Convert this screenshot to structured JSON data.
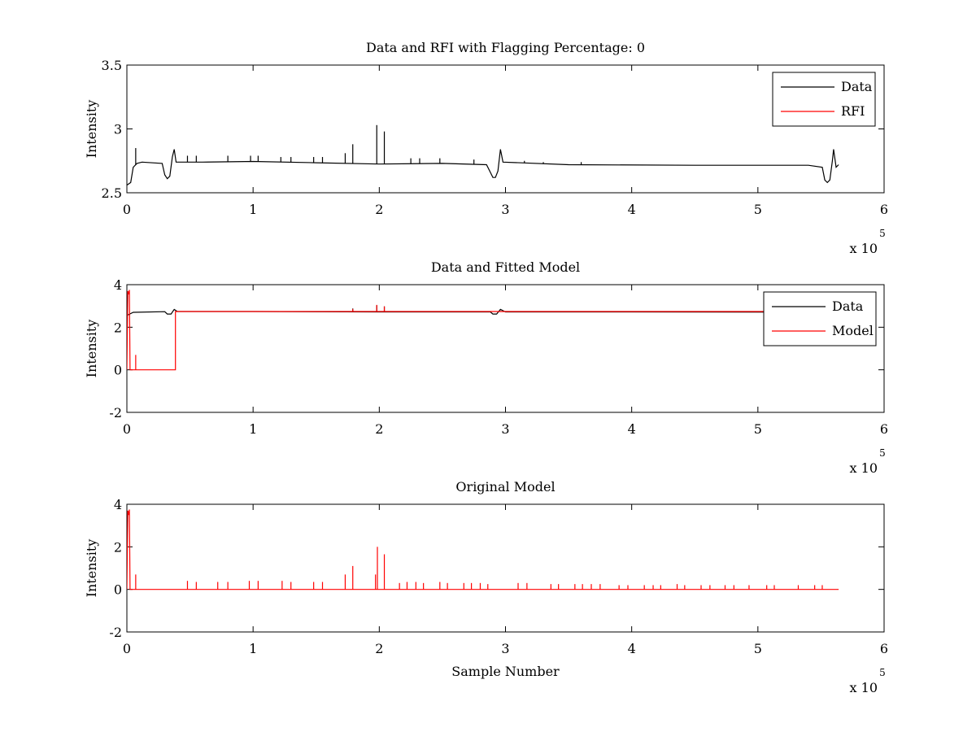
{
  "chart_data": [
    {
      "type": "line",
      "title": "Data and RFI with Flagging Percentage: 0",
      "xlabel": "",
      "ylabel": "Intensity",
      "xlim": [
        0,
        600000
      ],
      "ylim": [
        2.5,
        3.5
      ],
      "xticks": [
        0,
        1,
        2,
        3,
        4,
        5,
        6
      ],
      "yticks": [
        "2.5",
        "3",
        "3.5"
      ],
      "x_multiplier": {
        "base": "x 10",
        "exponent": "5"
      },
      "legend": {
        "position": "top-right",
        "entries": [
          {
            "label": "Data",
            "color": "#000000"
          },
          {
            "label": "RFI",
            "color": "#ff0000"
          }
        ]
      },
      "series": [
        {
          "name": "Data",
          "color": "#000000",
          "kind": "baseline",
          "points": [
            [
              0,
              2.56
            ],
            [
              3000,
              2.58
            ],
            [
              5000,
              2.7
            ],
            [
              8000,
              2.73
            ],
            [
              12000,
              2.74
            ],
            [
              28000,
              2.73
            ],
            [
              30000,
              2.64
            ],
            [
              32000,
              2.61
            ],
            [
              34000,
              2.63
            ],
            [
              36000,
              2.78
            ],
            [
              37500,
              2.84
            ],
            [
              39000,
              2.74
            ],
            [
              60000,
              2.74
            ],
            [
              100000,
              2.745
            ],
            [
              150000,
              2.735
            ],
            [
              200000,
              2.725
            ],
            [
              250000,
              2.73
            ],
            [
              285000,
              2.72
            ],
            [
              288000,
              2.66
            ],
            [
              290000,
              2.62
            ],
            [
              292000,
              2.62
            ],
            [
              294000,
              2.67
            ],
            [
              296000,
              2.84
            ],
            [
              298000,
              2.74
            ],
            [
              350000,
              2.72
            ],
            [
              450000,
              2.715
            ],
            [
              540000,
              2.715
            ],
            [
              551000,
              2.7
            ],
            [
              553000,
              2.6
            ],
            [
              555000,
              2.58
            ],
            [
              557000,
              2.6
            ],
            [
              559000,
              2.75
            ],
            [
              560000,
              2.84
            ],
            [
              562000,
              2.7
            ],
            [
              564000,
              2.72
            ]
          ],
          "spikes": [
            [
              7000,
              2.85
            ],
            [
              48000,
              2.79
            ],
            [
              55000,
              2.79
            ],
            [
              80000,
              2.79
            ],
            [
              98000,
              2.79
            ],
            [
              104000,
              2.79
            ],
            [
              122000,
              2.78
            ],
            [
              130000,
              2.78
            ],
            [
              148000,
              2.78
            ],
            [
              155000,
              2.78
            ],
            [
              173000,
              2.81
            ],
            [
              179000,
              2.88
            ],
            [
              198000,
              3.03
            ],
            [
              204000,
              2.98
            ],
            [
              225000,
              2.77
            ],
            [
              232000,
              2.77
            ],
            [
              248000,
              2.77
            ],
            [
              275000,
              2.76
            ],
            [
              315000,
              2.75
            ],
            [
              330000,
              2.74
            ],
            [
              360000,
              2.74
            ]
          ]
        },
        {
          "name": "RFI",
          "color": "#ff0000",
          "points": []
        }
      ]
    },
    {
      "type": "line",
      "title": "Data and Fitted Model",
      "xlabel": "",
      "ylabel": "Intensity",
      "xlim": [
        0,
        600000
      ],
      "ylim": [
        -2,
        4
      ],
      "xticks": [
        0,
        1,
        2,
        3,
        4,
        5,
        6
      ],
      "yticks": [
        "-2",
        "0",
        "2",
        "4"
      ],
      "x_multiplier": {
        "base": "x 10",
        "exponent": "5"
      },
      "legend": {
        "position": "top-right",
        "entries": [
          {
            "label": "Data",
            "color": "#000000"
          },
          {
            "label": "Model",
            "color": "#ff0000"
          }
        ]
      },
      "series": [
        {
          "name": "Data",
          "color": "#000000",
          "kind": "baseline",
          "points": [
            [
              0,
              2.55
            ],
            [
              5000,
              2.7
            ],
            [
              30000,
              2.73
            ],
            [
              32000,
              2.62
            ],
            [
              35000,
              2.62
            ],
            [
              37500,
              2.84
            ],
            [
              40000,
              2.74
            ],
            [
              100000,
              2.74
            ],
            [
              200000,
              2.72
            ],
            [
              288000,
              2.72
            ],
            [
              290000,
              2.62
            ],
            [
              293000,
              2.62
            ],
            [
              296000,
              2.84
            ],
            [
              300000,
              2.72
            ],
            [
              400000,
              2.72
            ],
            [
              545000,
              2.71
            ],
            [
              553000,
              2.58
            ],
            [
              558000,
              2.62
            ],
            [
              562000,
              2.7
            ]
          ],
          "spikes": [
            [
              198000,
              3.03
            ],
            [
              204000,
              2.98
            ],
            [
              179000,
              2.88
            ]
          ]
        },
        {
          "name": "Model",
          "color": "#ff0000",
          "kind": "baseline",
          "points": [
            [
              0,
              0
            ],
            [
              800,
              3.7
            ],
            [
              1500,
              3.55
            ],
            [
              2000,
              3.75
            ],
            [
              2500,
              0
            ],
            [
              38500,
              0
            ],
            [
              38500,
              2.74
            ],
            [
              560000,
              2.74
            ]
          ],
          "spikes": [
            [
              7000,
              0.7
            ],
            [
              198000,
              3.05
            ],
            [
              204000,
              2.98
            ],
            [
              179000,
              2.86
            ]
          ]
        }
      ]
    },
    {
      "type": "line",
      "title": "Original Model",
      "xlabel": "Sample Number",
      "ylabel": "Intensity",
      "xlim": [
        0,
        600000
      ],
      "ylim": [
        -2,
        4
      ],
      "xticks": [
        0,
        1,
        2,
        3,
        4,
        5,
        6
      ],
      "yticks": [
        "-2",
        "0",
        "2",
        "4"
      ],
      "x_multiplier": {
        "base": "x 10",
        "exponent": "5"
      },
      "series": [
        {
          "name": "",
          "color": "#ff0000",
          "kind": "baseline",
          "points": [
            [
              0,
              0
            ],
            [
              800,
              3.7
            ],
            [
              1500,
              3.5
            ],
            [
              2000,
              3.75
            ],
            [
              2500,
              0
            ],
            [
              564000,
              0
            ]
          ],
          "spikes": [
            [
              7000,
              0.7
            ],
            [
              48000,
              0.4
            ],
            [
              55000,
              0.35
            ],
            [
              72000,
              0.35
            ],
            [
              80000,
              0.35
            ],
            [
              97000,
              0.4
            ],
            [
              104000,
              0.4
            ],
            [
              123000,
              0.4
            ],
            [
              130000,
              0.35
            ],
            [
              148000,
              0.35
            ],
            [
              155000,
              0.35
            ],
            [
              173000,
              0.7
            ],
            [
              179000,
              1.1
            ],
            [
              197000,
              0.7
            ],
            [
              198500,
              2.0
            ],
            [
              204000,
              1.65
            ],
            [
              216000,
              0.3
            ],
            [
              222000,
              0.35
            ],
            [
              229000,
              0.35
            ],
            [
              235000,
              0.3
            ],
            [
              248000,
              0.35
            ],
            [
              254000,
              0.3
            ],
            [
              267000,
              0.3
            ],
            [
              273000,
              0.3
            ],
            [
              280000,
              0.3
            ],
            [
              286000,
              0.25
            ],
            [
              310000,
              0.3
            ],
            [
              317000,
              0.3
            ],
            [
              336000,
              0.25
            ],
            [
              342000,
              0.25
            ],
            [
              355000,
              0.25
            ],
            [
              361000,
              0.25
            ],
            [
              368000,
              0.25
            ],
            [
              375000,
              0.25
            ],
            [
              390000,
              0.2
            ],
            [
              397000,
              0.2
            ],
            [
              410000,
              0.2
            ],
            [
              417000,
              0.2
            ],
            [
              423000,
              0.2
            ],
            [
              436000,
              0.25
            ],
            [
              442000,
              0.2
            ],
            [
              455000,
              0.2
            ],
            [
              462000,
              0.2
            ],
            [
              474000,
              0.2
            ],
            [
              481000,
              0.2
            ],
            [
              493000,
              0.2
            ],
            [
              507000,
              0.2
            ],
            [
              513000,
              0.2
            ],
            [
              532000,
              0.2
            ],
            [
              545000,
              0.2
            ],
            [
              551000,
              0.2
            ]
          ]
        }
      ]
    }
  ]
}
